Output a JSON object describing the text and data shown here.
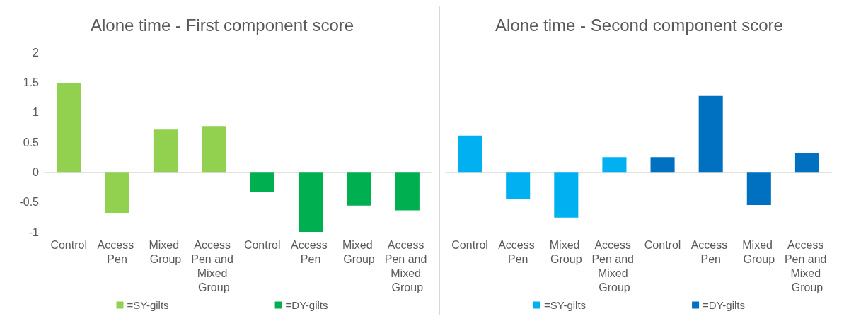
{
  "chart_data": [
    {
      "type": "bar",
      "title": "Alone time - First component score",
      "categories": [
        "Control",
        "Access Pen",
        "Mixed Group",
        "Access Pen and Mixed Group",
        "Control",
        "Access Pen",
        "Mixed Group",
        "Access Pen and Mixed Group"
      ],
      "series": [
        {
          "name": "=SY-gilts",
          "color": "#92d050",
          "values": [
            1.48,
            -0.68,
            0.71,
            0.77,
            null,
            null,
            null,
            null
          ]
        },
        {
          "name": "=DY-gilts",
          "color": "#00b050",
          "values": [
            null,
            null,
            null,
            null,
            -0.34,
            -1.0,
            -0.56,
            -0.64
          ]
        }
      ],
      "ylim": [
        -1,
        2
      ],
      "yticks": [
        -1,
        -0.5,
        0,
        0.5,
        1,
        1.5,
        2
      ],
      "legend": "bottom"
    },
    {
      "type": "bar",
      "title": "Alone time - Second component score",
      "categories": [
        "Control",
        "Access Pen",
        "Mixed Group",
        "Access Pen and Mixed Group",
        "Control",
        "Access Pen",
        "Mixed Group",
        "Access Pen and Mixed Group"
      ],
      "series": [
        {
          "name": "=SY-gilts",
          "color": "#00b0f0",
          "values": [
            0.61,
            -0.45,
            -0.76,
            0.25,
            null,
            null,
            null,
            null
          ]
        },
        {
          "name": "=DY-gilts",
          "color": "#0070c0",
          "values": [
            null,
            null,
            null,
            null,
            0.25,
            1.27,
            -0.55,
            0.32
          ]
        }
      ],
      "ylim": [
        -1,
        2
      ],
      "yticks": [
        -1,
        -0.5,
        0,
        0.5,
        1,
        1.5,
        2
      ],
      "legend": "bottom",
      "tick_labels": "x"
    }
  ]
}
